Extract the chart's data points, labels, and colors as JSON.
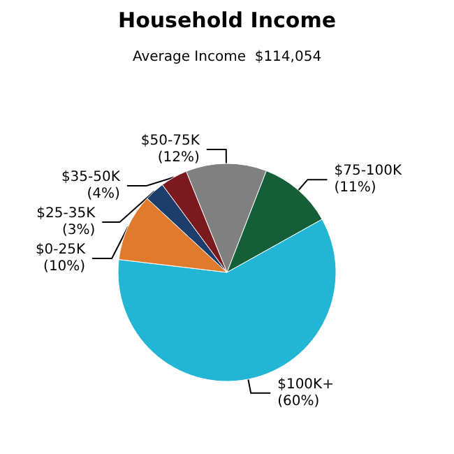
{
  "chart_data": {
    "type": "pie",
    "title": "Household Income",
    "subtitle": "Average Income  $114,054",
    "categories": [
      "$50-75K",
      "$75-100K",
      "$100K+",
      "$0-25K",
      "$25-35K",
      "$35-50K"
    ],
    "values": [
      12,
      11,
      60,
      10,
      3,
      4
    ],
    "value_labels": [
      "(12%)",
      "(11%)",
      "(60%)",
      "(10%)",
      "(3%)",
      "(4%)"
    ],
    "colors": [
      "#808080",
      "#145e38",
      "#22b5d4",
      "#e07b2e",
      "#1d3d6b",
      "#7a1a1e"
    ],
    "legend": false
  }
}
